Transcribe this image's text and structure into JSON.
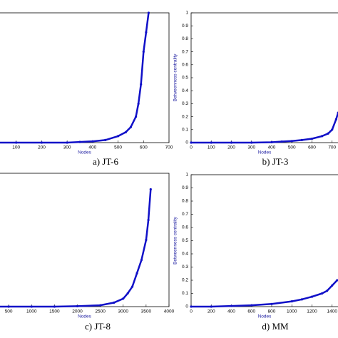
{
  "chart_data": [
    {
      "type": "line",
      "caption": "a) JT-6",
      "xlabel": "Nodes",
      "color": "#1010c8",
      "x": [
        0,
        100,
        200,
        300,
        350,
        400,
        450,
        500,
        530,
        550,
        570,
        580,
        590,
        600,
        610,
        620
      ],
      "y": [
        0,
        0,
        0,
        0,
        0.005,
        0.01,
        0.02,
        0.05,
        0.08,
        0.12,
        0.2,
        0.3,
        0.45,
        0.7,
        0.85,
        1.0
      ],
      "xlim": [
        0,
        700
      ],
      "xticks": [
        100,
        200,
        300,
        400,
        500,
        600,
        700
      ],
      "ylim": [
        0,
        1
      ]
    },
    {
      "type": "line",
      "caption": "b) JT-3",
      "xlabel": "Nodes",
      "ylabel": "Betweenness centrality",
      "color": "#1010c8",
      "x": [
        0,
        100,
        200,
        300,
        400,
        450,
        500,
        550,
        600,
        650,
        680,
        700,
        720,
        730
      ],
      "y": [
        0,
        0,
        0,
        0,
        0.003,
        0.008,
        0.012,
        0.02,
        0.03,
        0.05,
        0.07,
        0.1,
        0.18,
        0.23
      ],
      "xlim": [
        0,
        800
      ],
      "xticks": [
        0,
        100,
        200,
        300,
        400,
        500,
        600,
        700
      ],
      "ylim": [
        0,
        1
      ],
      "yticks": [
        0,
        0.1,
        0.2,
        0.3,
        0.4,
        0.5,
        0.6,
        0.7,
        0.8,
        0.9,
        1
      ]
    },
    {
      "type": "line",
      "caption": "c) JT-8",
      "xlabel": "Nodes",
      "color": "#1010c8",
      "x": [
        0,
        500,
        1000,
        1500,
        2000,
        2500,
        2800,
        3000,
        3100,
        3200,
        3300,
        3400,
        3500,
        3550,
        3600
      ],
      "y": [
        0,
        0,
        0,
        0,
        0.003,
        0.01,
        0.03,
        0.06,
        0.1,
        0.15,
        0.25,
        0.35,
        0.5,
        0.65,
        0.88
      ],
      "xlim": [
        0,
        4000
      ],
      "xticks": [
        500,
        1000,
        1500,
        2000,
        2500,
        3000,
        3500,
        4000
      ],
      "ylim": [
        0,
        1
      ]
    },
    {
      "type": "line",
      "caption": "d) MM",
      "xlabel": "Nodes",
      "ylabel": "Betweenness centrality",
      "color": "#1010c8",
      "x": [
        0,
        200,
        400,
        600,
        800,
        1000,
        1100,
        1200,
        1300,
        1350,
        1400,
        1450
      ],
      "y": [
        0,
        0,
        0.005,
        0.01,
        0.02,
        0.04,
        0.055,
        0.075,
        0.1,
        0.12,
        0.16,
        0.2
      ],
      "xlim": [
        0,
        1600
      ],
      "xticks": [
        0,
        200,
        400,
        600,
        800,
        1000,
        1200,
        1400
      ],
      "ylim": [
        0,
        1
      ],
      "yticks": [
        0,
        0.1,
        0.2,
        0.3,
        0.4,
        0.5,
        0.6,
        0.7,
        0.8,
        0.9,
        1
      ]
    }
  ]
}
